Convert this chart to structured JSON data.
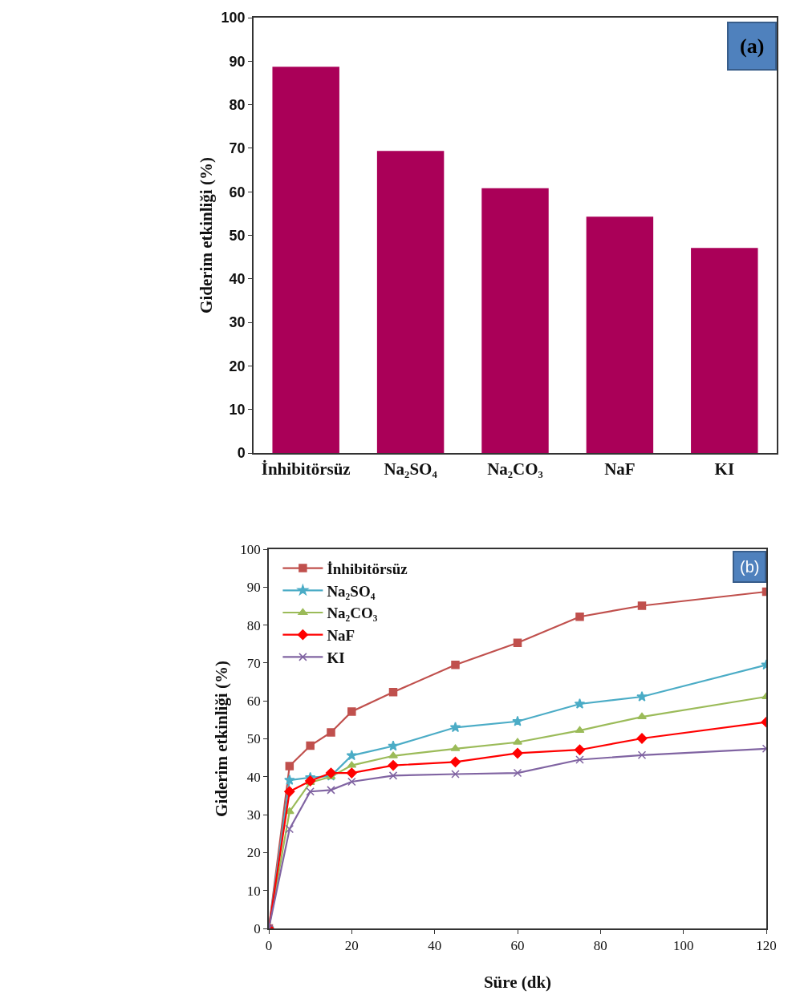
{
  "chart_data": [
    {
      "type": "bar",
      "ylabel": "Giderim etkinliği (%)",
      "categories": [
        "İnhibitörsüz",
        "Na₂SO₄",
        "Na₂CO₃",
        "NaF",
        "KI"
      ],
      "values": [
        88.7,
        69.4,
        60.8,
        54.3,
        47.1
      ],
      "color": "#aa0058",
      "ylim": [
        0,
        100
      ],
      "yticks": [
        0,
        10,
        20,
        30,
        40,
        50,
        60,
        70,
        80,
        90,
        100
      ],
      "grid": false,
      "legend": false,
      "annotations": [
        "(a)"
      ]
    },
    {
      "type": "line",
      "xlabel": "Süre (dk)",
      "ylabel": "Giderim etkinliği (%)",
      "x": [
        0,
        5,
        10,
        15,
        20,
        30,
        45,
        60,
        75,
        90,
        120
      ],
      "xlim": [
        0,
        120
      ],
      "xticks": [
        0,
        20,
        40,
        60,
        80,
        100,
        120
      ],
      "ylim": [
        0,
        100
      ],
      "yticks": [
        0,
        10,
        20,
        30,
        40,
        50,
        60,
        70,
        80,
        90,
        100
      ],
      "grid": false,
      "legend": "top left",
      "line_style": "solid",
      "annotations": [
        "(b)"
      ],
      "series": [
        {
          "name": "İnhibitörsüz",
          "color": "#c0504d",
          "marker": "square",
          "values": [
            0,
            42.8,
            48.2,
            51.7,
            57.2,
            62.3,
            69.5,
            75.3,
            82.2,
            85.1,
            88.8
          ]
        },
        {
          "name": "Na₂SO₄",
          "color": "#4bacc6",
          "marker": "star",
          "values": [
            0,
            39.1,
            39.8,
            40.2,
            45.6,
            48.1,
            53.0,
            54.6,
            59.2,
            61.1,
            69.5
          ]
        },
        {
          "name": "Na₂CO₃",
          "color": "#9bbb59",
          "marker": "triangle",
          "values": [
            0,
            30.8,
            38.5,
            40,
            43,
            45.5,
            47.4,
            49.1,
            52.2,
            55.8,
            61.1
          ]
        },
        {
          "name": "NaF",
          "color": "#ff0000",
          "marker": "diamond",
          "values": [
            0,
            36.1,
            38.9,
            41,
            41,
            43,
            43.9,
            46.2,
            47.1,
            50.1,
            54.4
          ]
        },
        {
          "name": "KI",
          "color": "#8064a2",
          "marker": "cross",
          "values": [
            0,
            26.2,
            36.1,
            36.5,
            38.7,
            40.3,
            40.7,
            41,
            44.5,
            45.7,
            47.4
          ]
        }
      ]
    }
  ]
}
